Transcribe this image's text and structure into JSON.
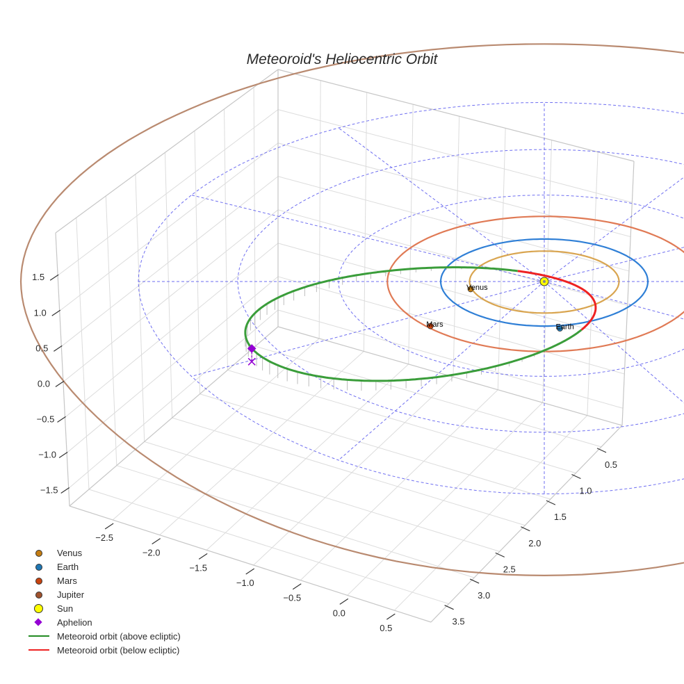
{
  "chart_data": {
    "type": "scatter3d",
    "title": "Meteoroid's Heliocentric Orbit",
    "axes": {
      "x": {
        "range": [
          -2.96,
          0.89
        ],
        "ticks": [
          -2.5,
          -2.0,
          -1.5,
          -1.0,
          -0.5,
          0.0,
          0.5
        ],
        "tick_labels": [
          "−2.5",
          "−2.0",
          "−1.5",
          "−1.0",
          "−0.5",
          "0.0",
          "0.5"
        ]
      },
      "y": {
        "range": [
          0.09,
          3.85
        ],
        "ticks": [
          0.5,
          1.0,
          1.5,
          2.0,
          2.5,
          3.0,
          3.5
        ],
        "tick_labels": [
          "0.5",
          "1.0",
          "1.5",
          "2.0",
          "2.5",
          "3.0",
          "3.5"
        ]
      },
      "z": {
        "range": [
          -1.75,
          2.1
        ],
        "ticks": [
          1.5,
          1.0,
          0.5,
          0.0,
          -0.5,
          -1.0,
          -1.5
        ],
        "tick_labels": [
          "1.5",
          "1.0",
          "0.5",
          "0.0",
          "−0.5",
          "−1.0",
          "−1.5"
        ]
      }
    },
    "ecliptic_grid": {
      "circle_radii_au": [
        1,
        2,
        3,
        4
      ],
      "radial_spokes_deg_step": 30,
      "spoke_length_au": 4,
      "color": "#5555ee"
    },
    "planet_orbits": [
      {
        "name": "Venus",
        "radius_au": 0.72,
        "color": "#d9a550"
      },
      {
        "name": "Earth",
        "radius_au": 1.0,
        "color": "#2f7fd6"
      },
      {
        "name": "Mars",
        "radius_au": 1.52,
        "color": "#e07a55"
      },
      {
        "name": "Jupiter",
        "radius_au": 5.2,
        "color": "#b98a70"
      }
    ],
    "planets": [
      {
        "name": "Venus",
        "label": "Venus",
        "position": [
          -0.71,
          -0.18,
          0
        ],
        "color": "#c47d12"
      },
      {
        "name": "Earth",
        "label": "Earth",
        "position": [
          0.15,
          -1.05,
          0
        ],
        "color": "#1f77b4"
      },
      {
        "name": "Mars",
        "label": "Mars",
        "position": [
          -1.1,
          -1.0,
          0
        ],
        "color": "#c8430f"
      }
    ],
    "sun": {
      "position": [
        0,
        0,
        0
      ],
      "color": "#ffff00"
    },
    "meteoroid_orbit": {
      "center_au": [
        -1.215,
        -0.985
      ],
      "semi_major_au": 1.8,
      "semi_minor_au": 1.15,
      "rotation_deg": 24,
      "z_amplitude_au": 0.12,
      "node_angle_deg": 40,
      "above_color": "#3a9d3a",
      "below_color": "#ee2222"
    },
    "aphelion": {
      "position": [
        -2.86,
        -1.72,
        0.21
      ],
      "color": "#9400d3"
    }
  },
  "legend": {
    "items": [
      {
        "label": "Venus",
        "color": "#c47d12"
      },
      {
        "label": "Earth",
        "color": "#1f77b4"
      },
      {
        "label": "Mars",
        "color": "#c8430f"
      },
      {
        "label": "Jupiter",
        "color": "#a0522d"
      },
      {
        "label": "Sun",
        "color": "#ffff00"
      },
      {
        "label": "Aphelion",
        "color": "#9400d3"
      },
      {
        "label": "Meteoroid orbit (above ecliptic)",
        "color": "#228b22"
      },
      {
        "label": "Meteoroid orbit (below ecliptic)",
        "color": "#ee2222"
      }
    ]
  }
}
